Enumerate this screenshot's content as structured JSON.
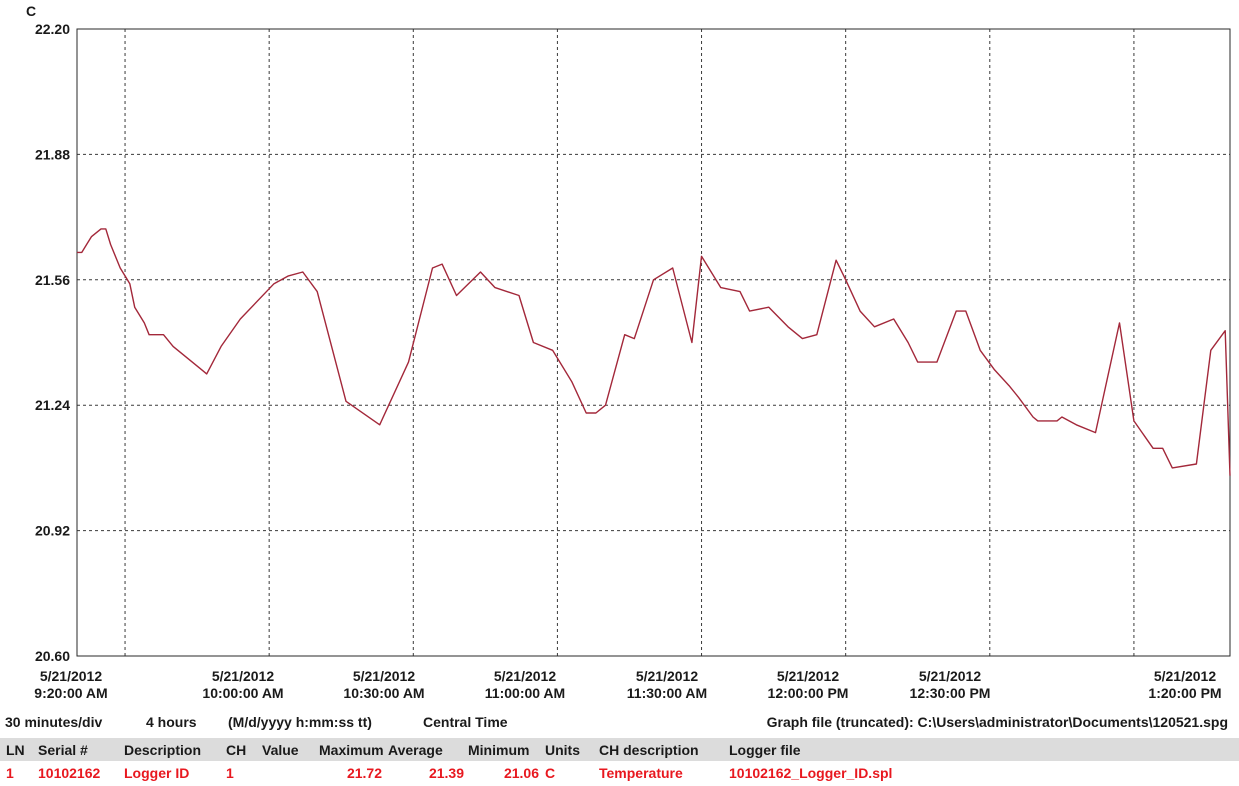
{
  "chart_data": {
    "type": "line",
    "title": "",
    "ylabel": "C",
    "xlabel": "",
    "ylim": [
      20.6,
      22.2
    ],
    "y_ticks": [
      "22.20",
      "21.88",
      "21.56",
      "21.24",
      "20.92",
      "20.60"
    ],
    "x_range": [
      "5/21/2012 9:20:00 AM",
      "5/21/2012 1:20:00 PM"
    ],
    "x_ticks": [
      {
        "date": "5/21/2012",
        "time": "9:20:00 AM"
      },
      {
        "date": "5/21/2012",
        "time": "10:00:00 AM"
      },
      {
        "date": "5/21/2012",
        "time": "10:30:00 AM"
      },
      {
        "date": "5/21/2012",
        "time": "11:00:00 AM"
      },
      {
        "date": "5/21/2012",
        "time": "11:30:00 AM"
      },
      {
        "date": "5/21/2012",
        "time": "12:00:00 PM"
      },
      {
        "date": "5/21/2012",
        "time": "12:30:00 PM"
      },
      {
        "date": "5/21/2012",
        "time": "1:20:00 PM"
      }
    ],
    "grid": true,
    "series": [
      {
        "color": "#a3283a",
        "x": [
          "9:20",
          "9:21",
          "9:22",
          "9:23",
          "9:25",
          "9:26",
          "9:27",
          "9:29",
          "9:31",
          "9:32",
          "9:34",
          "9:35",
          "9:37",
          "9:38",
          "9:40",
          "9:43",
          "9:46",
          "9:47",
          "9:50",
          "9:54",
          "10:01",
          "10:04",
          "10:07",
          "10:10",
          "10:13",
          "10:16",
          "10:23",
          "10:29",
          "10:34",
          "10:36",
          "10:39",
          "10:44",
          "10:47",
          "10:52",
          "10:55",
          "10:59",
          "11:03",
          "11:06",
          "11:08",
          "11:10",
          "11:14",
          "11:16",
          "11:20",
          "11:24",
          "11:28",
          "11:30",
          "11:34",
          "11:38",
          "11:40",
          "11:44",
          "11:48",
          "11:51",
          "11:54",
          "11:58",
          "12:00",
          "12:03",
          "12:06",
          "12:10",
          "12:13",
          "12:15",
          "12:19",
          "12:23",
          "12:25",
          "12:28",
          "12:31",
          "12:34",
          "12:36",
          "12:39",
          "12:40",
          "12:44",
          "12:45",
          "12:48",
          "12:52",
          "12:57",
          "13:00",
          "13:04",
          "13:06",
          "13:08",
          "13:13",
          "13:16",
          "13:19",
          "13:20"
        ],
        "values": [
          21.63,
          21.63,
          21.65,
          21.67,
          21.69,
          21.69,
          21.65,
          21.59,
          21.55,
          21.49,
          21.45,
          21.42,
          21.42,
          21.42,
          21.39,
          21.36,
          21.33,
          21.32,
          21.39,
          21.46,
          21.55,
          21.57,
          21.58,
          21.53,
          21.39,
          21.25,
          21.19,
          21.35,
          21.59,
          21.6,
          21.52,
          21.58,
          21.54,
          21.52,
          21.4,
          21.38,
          21.3,
          21.22,
          21.22,
          21.24,
          21.42,
          21.41,
          21.56,
          21.59,
          21.4,
          21.62,
          21.54,
          21.53,
          21.48,
          21.49,
          21.44,
          21.41,
          21.42,
          21.61,
          21.56,
          21.48,
          21.44,
          21.46,
          21.4,
          21.35,
          21.35,
          21.48,
          21.48,
          21.38,
          21.33,
          21.29,
          21.26,
          21.21,
          21.2,
          21.2,
          21.21,
          21.19,
          21.17,
          21.45,
          21.2,
          21.13,
          21.13,
          21.08,
          21.09,
          21.38,
          21.43,
          21.06
        ]
      }
    ]
  },
  "info": {
    "div": "30 minutes/div",
    "span": "4 hours",
    "format": "(M/d/yyyy h:mm:ss tt)",
    "timezone": "Central Time",
    "graph_file": "Graph file (truncated): C:\\Users\\administrator\\Documents\\120521.spg"
  },
  "table": {
    "headers": {
      "ln": "LN",
      "serial": "Serial #",
      "description": "Description",
      "ch": "CH",
      "value": "Value",
      "maximum": "Maximum",
      "average": "Average",
      "minimum": "Minimum",
      "units": "Units",
      "ch_description": "CH description",
      "logger_file": "Logger file"
    },
    "row": {
      "ln": "1",
      "serial": "10102162",
      "description": "Logger ID",
      "ch": "1",
      "value": "",
      "maximum": "21.72",
      "average": "21.39",
      "minimum": "21.06",
      "units": "C",
      "ch_description": "Temperature",
      "logger_file": "10102162_Logger_ID.spl"
    }
  }
}
